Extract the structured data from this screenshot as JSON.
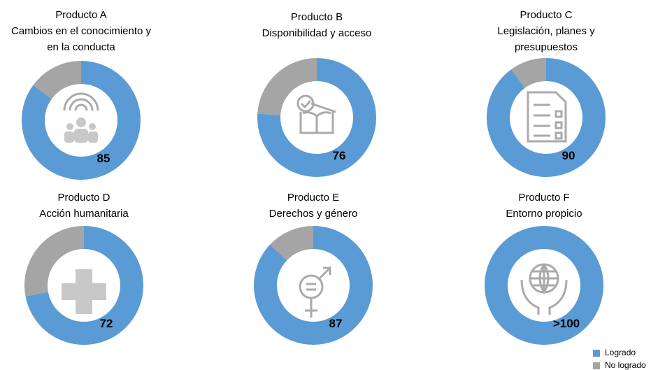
{
  "chart_data": [
    {
      "type": "pie",
      "donut": true,
      "title": "Producto A",
      "subtitle": [
        "Cambios en el conocimiento y",
        "en la conducta"
      ],
      "categories": [
        "Logrado",
        "No logrado"
      ],
      "values": [
        85,
        15
      ],
      "colors": [
        "#5b9bd5",
        "#a5a5a5"
      ]
    },
    {
      "type": "pie",
      "donut": true,
      "title": "Producto B",
      "subtitle": [
        "Disponibilidad y acceso"
      ],
      "categories": [
        "Logrado",
        "No logrado"
      ],
      "values": [
        76,
        24
      ],
      "colors": [
        "#5b9bd5",
        "#a5a5a5"
      ]
    },
    {
      "type": "pie",
      "donut": true,
      "title": "Producto C",
      "subtitle": [
        "Legislación, planes y",
        "presupuestos"
      ],
      "categories": [
        "Logrado",
        "No logrado"
      ],
      "values": [
        90,
        10
      ],
      "colors": [
        "#5b9bd5",
        "#a5a5a5"
      ]
    },
    {
      "type": "pie",
      "donut": true,
      "title": "Producto D",
      "subtitle": [
        "Acción humanitaria"
      ],
      "categories": [
        "Logrado",
        "No logrado"
      ],
      "values": [
        72,
        28
      ],
      "colors": [
        "#5b9bd5",
        "#a5a5a5"
      ]
    },
    {
      "type": "pie",
      "donut": true,
      "title": "Producto E",
      "subtitle": [
        "Derechos y género"
      ],
      "categories": [
        "Logrado",
        "No logrado"
      ],
      "values": [
        87,
        13
      ],
      "colors": [
        "#5b9bd5",
        "#a5a5a5"
      ]
    },
    {
      "type": "pie",
      "donut": true,
      "title": "Producto F",
      "subtitle": [
        "Entorno propicio"
      ],
      "categories": [
        "Logrado",
        "No logrado"
      ],
      "values": [
        100,
        0
      ],
      "value_labels": [
        ">100",
        null
      ],
      "colors": [
        "#5b9bd5",
        "#a5a5a5"
      ],
      "legend": "lower right"
    }
  ]
}
